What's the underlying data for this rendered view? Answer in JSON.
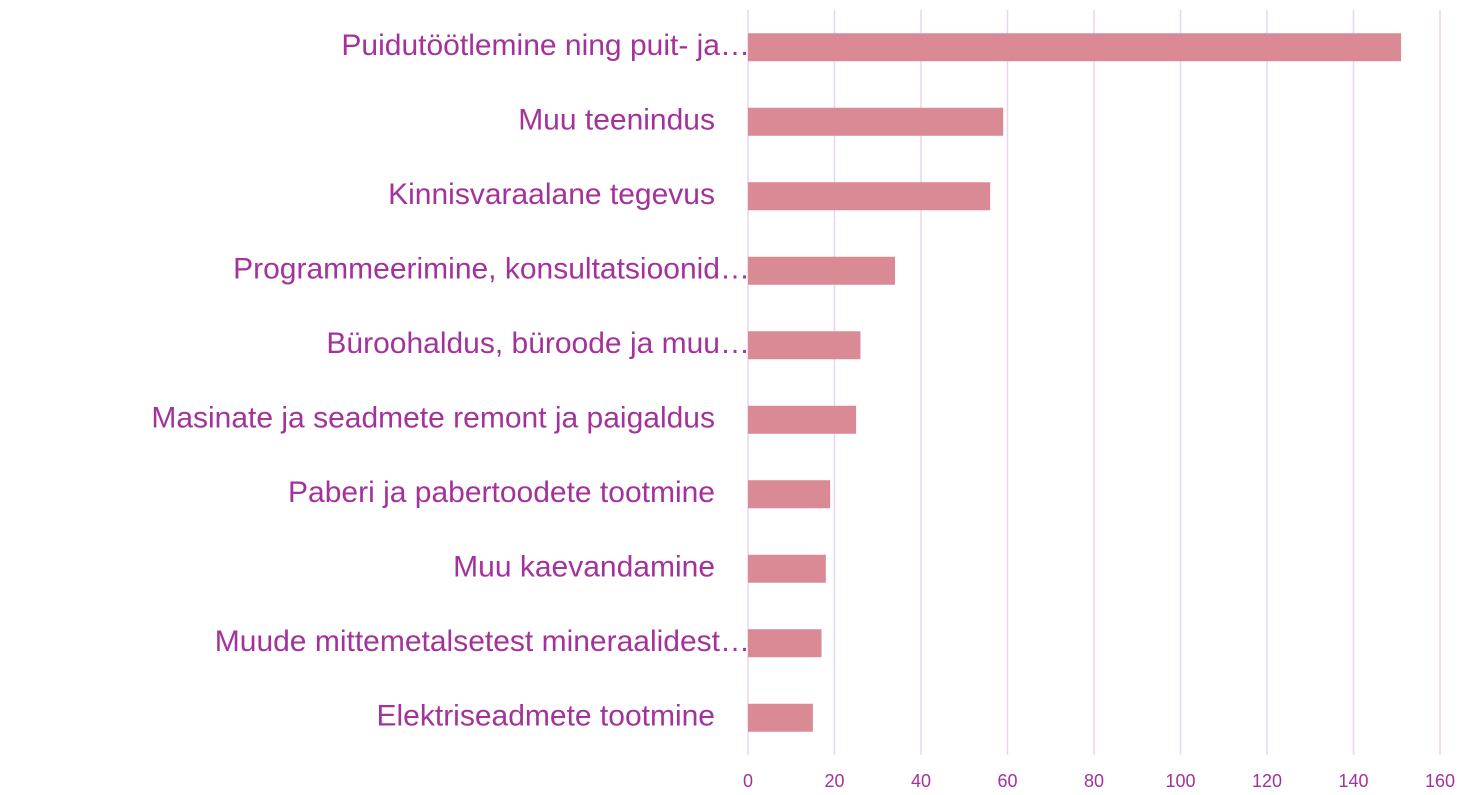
{
  "chart_data": {
    "type": "barh",
    "categories": [
      "Puidutöötlemine ning puit- ja…",
      "Muu teenindus",
      "Kinnisvaraalane tegevus",
      "Programmeerimine, konsultatsioonid…",
      "Büroohaldus, büroode ja muu…",
      "Masinate ja seadmete remont ja paigaldus",
      "Paberi ja pabertoodete tootmine",
      "Muu kaevandamine",
      "Muude mittemetalsetest mineraalidest…",
      "Elektriseadmete tootmine"
    ],
    "values": [
      151,
      59,
      56,
      34,
      26,
      25,
      19,
      18,
      17,
      15
    ],
    "color": "#d98a94",
    "xlim": [
      0,
      160
    ],
    "xticks": [
      0,
      20,
      40,
      60,
      80,
      100,
      120,
      140,
      160
    ],
    "grid": true
  }
}
